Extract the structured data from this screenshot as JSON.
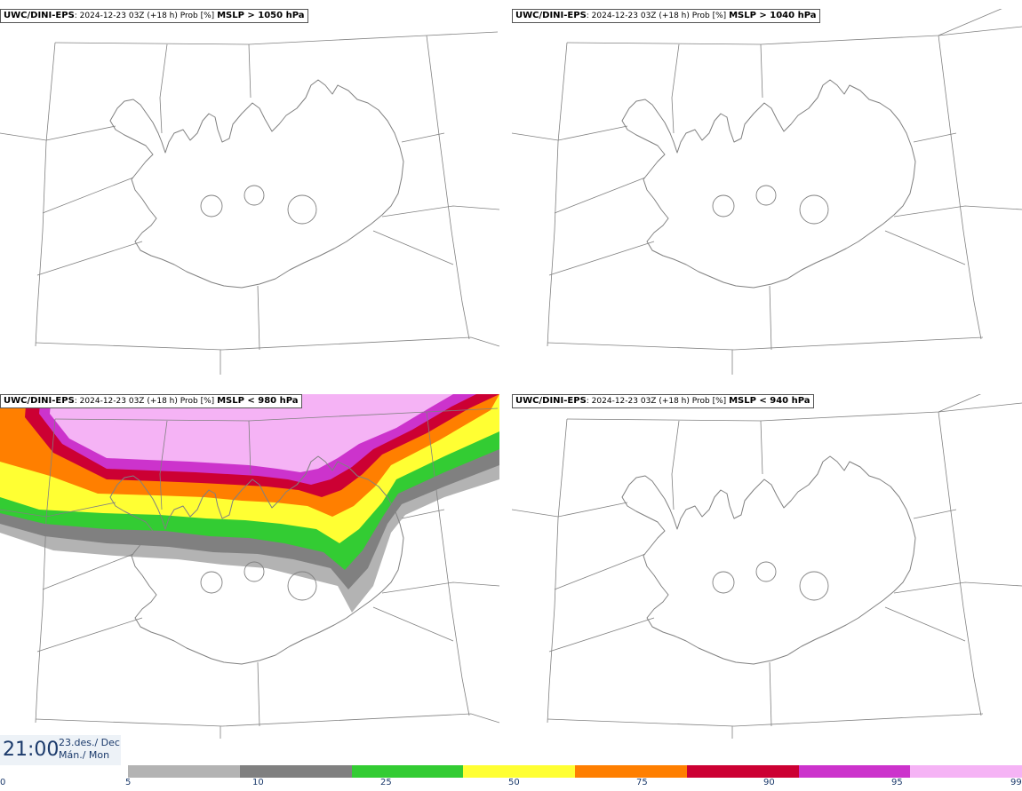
{
  "panels": [
    {
      "model": "UWC/DINI-EPS",
      "run": "2024-12-23 03Z (+18 h) Prob [%]",
      "threshold": "MSLP > 1050 hPa"
    },
    {
      "model": "UWC/DINI-EPS",
      "run": "2024-12-23 03Z (+18 h) Prob [%]",
      "threshold": "MSLP > 1040 hPa"
    },
    {
      "model": "UWC/DINI-EPS",
      "run": "2024-12-23 03Z (+18 h) Prob [%]",
      "threshold": "MSLP < 980 hPa"
    },
    {
      "model": "UWC/DINI-EPS",
      "run": "2024-12-23 03Z (+18 h) Prob [%]",
      "threshold": "MSLP < 940 hPa"
    }
  ],
  "valid_time": {
    "time": "21:00",
    "date_line1": "23.des./ Dec",
    "date_line2": "Mán./ Mon"
  },
  "colorbar": {
    "ticks": [
      "0",
      "5",
      "10",
      "25",
      "50",
      "75",
      "90",
      "95",
      "99"
    ],
    "colors": [
      "#ffffff",
      "#b3b3b3",
      "#808080",
      "#33cc33",
      "#ffff33",
      "#ff7f00",
      "#cc0033",
      "#cc33cc",
      "#f5b3f5"
    ]
  },
  "colors": {
    "coast": "#808080",
    "grid": "#808080",
    "title_text": "#1b3a6b"
  }
}
